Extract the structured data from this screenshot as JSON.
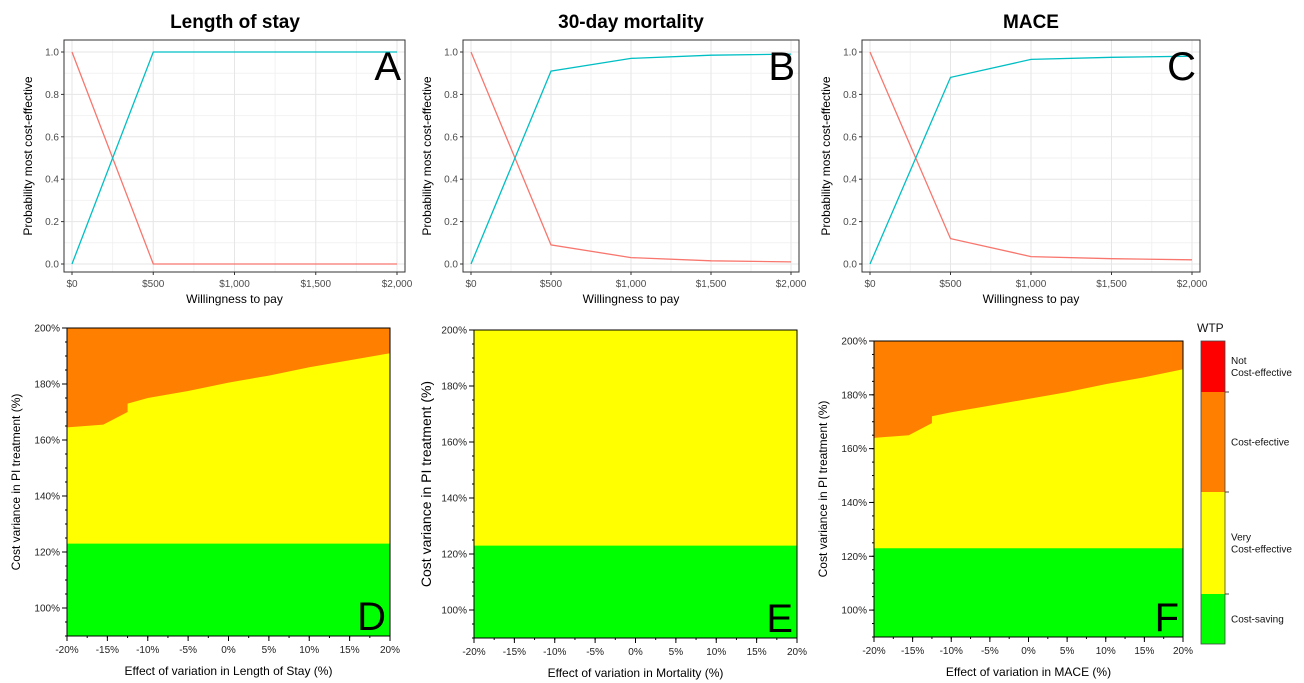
{
  "colors": {
    "series_red": "#F8766D",
    "series_teal": "#00BFC4",
    "not_cost_effective": "#FF0000",
    "cost_effective": "#FF7F00",
    "very_cost_effective": "#FFFF00",
    "cost_saving": "#00FF00"
  },
  "legend": {
    "title": "WTP",
    "items": [
      {
        "label": [
          "Not",
          "Cost-effective"
        ],
        "color": "#FF0000"
      },
      {
        "label": [
          "Cost-efective"
        ],
        "color": "#FF7F00"
      },
      {
        "label": [
          "Very",
          "Cost-effective"
        ],
        "color": "#FFFF00"
      },
      {
        "label": [
          "Cost-saving"
        ],
        "color": "#00FF00"
      }
    ]
  },
  "chart_data": [
    {
      "type": "line",
      "title": "Length of stay",
      "panel_label": "A",
      "xlabel": "Willingness to pay",
      "ylabel": "Probability most cost-effective",
      "x": [
        0,
        500,
        1000,
        1500,
        2000
      ],
      "x_tick_labels": [
        "$0",
        "$500",
        "$1,000",
        "$1,500",
        "$2,000"
      ],
      "ylim": [
        0,
        1
      ],
      "y_ticks": [
        "0.0",
        "0.2",
        "0.4",
        "0.6",
        "0.8",
        "1.0"
      ],
      "grid": true,
      "series": [
        {
          "color": "#F8766D",
          "values": [
            1.0,
            0.0,
            0.0,
            0.0,
            0.0
          ]
        },
        {
          "color": "#00BFC4",
          "values": [
            0.0,
            1.0,
            1.0,
            1.0,
            1.0
          ]
        }
      ]
    },
    {
      "type": "line",
      "title": "30-day mortality",
      "panel_label": "B",
      "xlabel": "Willingness to pay",
      "ylabel": "Probability most cost-effective",
      "x": [
        0,
        500,
        1000,
        1500,
        2000
      ],
      "x_tick_labels": [
        "$0",
        "$500",
        "$1,000",
        "$1,500",
        "$2,000"
      ],
      "ylim": [
        0,
        1
      ],
      "y_ticks": [
        "0.0",
        "0.2",
        "0.4",
        "0.6",
        "0.8",
        "1.0"
      ],
      "grid": true,
      "series": [
        {
          "color": "#F8766D",
          "values": [
            1.0,
            0.09,
            0.03,
            0.015,
            0.01
          ]
        },
        {
          "color": "#00BFC4",
          "values": [
            0.0,
            0.91,
            0.97,
            0.985,
            0.99
          ]
        }
      ]
    },
    {
      "type": "line",
      "title": "MACE",
      "panel_label": "C",
      "xlabel": "Willingness to pay",
      "ylabel": "Probability most cost-effective",
      "x": [
        0,
        500,
        1000,
        1500,
        2000
      ],
      "x_tick_labels": [
        "$0",
        "$500",
        "$1,000",
        "$1,500",
        "$2,000"
      ],
      "ylim": [
        0,
        1
      ],
      "y_ticks": [
        "0.0",
        "0.2",
        "0.4",
        "0.6",
        "0.8",
        "1.0"
      ],
      "grid": true,
      "series": [
        {
          "color": "#F8766D",
          "values": [
            1.0,
            0.12,
            0.035,
            0.025,
            0.02
          ]
        },
        {
          "color": "#00BFC4",
          "values": [
            0.0,
            0.88,
            0.965,
            0.975,
            0.98
          ]
        }
      ]
    },
    {
      "type": "area",
      "panel_label": "D",
      "xlabel": "Effect of variation in Length of Stay (%)",
      "ylabel": "Cost variance in PI treatment (%)",
      "xlim": [
        -20,
        20
      ],
      "ylim": [
        90,
        200
      ],
      "x_ticks": [
        -20,
        -15,
        -10,
        -5,
        0,
        5,
        10,
        15,
        20
      ],
      "x_tick_labels": [
        "-20%",
        "-15%",
        "-10%",
        "-5%",
        "0%",
        "5%",
        "10%",
        "15%",
        "20%"
      ],
      "y_ticks": [
        100,
        120,
        140,
        160,
        180,
        200
      ],
      "y_tick_labels": [
        "100%",
        "120%",
        "140%",
        "160%",
        "180%",
        "200%"
      ],
      "boundaries": {
        "cost_saving_upper": {
          "x": [
            -20,
            20
          ],
          "y": [
            123,
            123
          ]
        },
        "very_cost_effective_upper": {
          "x": [
            -20,
            -15.5,
            -12.5,
            -12.5,
            -10,
            -5,
            0,
            5,
            10,
            15,
            20
          ],
          "y": [
            164.5,
            165.5,
            170,
            173,
            175,
            177.5,
            180.5,
            183,
            186,
            188.5,
            191
          ]
        }
      }
    },
    {
      "type": "area",
      "panel_label": "E",
      "xlabel": "Effect of variation in Mortality (%)",
      "ylabel": "Cost variance in PI treatment (%)",
      "xlim": [
        -20,
        20
      ],
      "ylim": [
        90,
        200
      ],
      "x_ticks": [
        -20,
        -15,
        -10,
        -5,
        0,
        5,
        10,
        15,
        20
      ],
      "x_tick_labels": [
        "-20%",
        "-15%",
        "-10%",
        "-5%",
        "0%",
        "5%",
        "10%",
        "15%",
        "20%"
      ],
      "y_ticks": [
        100,
        120,
        140,
        160,
        180,
        200
      ],
      "y_tick_labels": [
        "100%",
        "120%",
        "140%",
        "160%",
        "180%",
        "200%"
      ],
      "boundaries": {
        "cost_saving_upper": {
          "x": [
            -20,
            20
          ],
          "y": [
            123,
            123
          ]
        },
        "very_cost_effective_upper": {
          "x": [
            -20,
            20
          ],
          "y": [
            200,
            200
          ]
        }
      }
    },
    {
      "type": "area",
      "panel_label": "F",
      "xlabel": "Effect of variation in MACE (%)",
      "ylabel": "Cost variance in PI treatment (%)",
      "xlim": [
        -20,
        20
      ],
      "ylim": [
        90,
        200
      ],
      "x_ticks": [
        -20,
        -15,
        -10,
        -5,
        0,
        5,
        10,
        15,
        20
      ],
      "x_tick_labels": [
        "-20%",
        "-15%",
        "-10%",
        "-5%",
        "0%",
        "5%",
        "10%",
        "15%",
        "20%"
      ],
      "y_ticks": [
        100,
        120,
        140,
        160,
        180,
        200
      ],
      "y_tick_labels": [
        "100%",
        "120%",
        "140%",
        "160%",
        "180%",
        "200%"
      ],
      "boundaries": {
        "cost_saving_upper": {
          "x": [
            -20,
            20
          ],
          "y": [
            123,
            123
          ]
        },
        "very_cost_effective_upper": {
          "x": [
            -20,
            -15.5,
            -12.5,
            -12.5,
            -10,
            -5,
            0,
            5,
            10,
            15,
            20
          ],
          "y": [
            164,
            165,
            169.5,
            172,
            173.5,
            176,
            178.5,
            181,
            184,
            186.5,
            189.5
          ]
        }
      }
    }
  ]
}
